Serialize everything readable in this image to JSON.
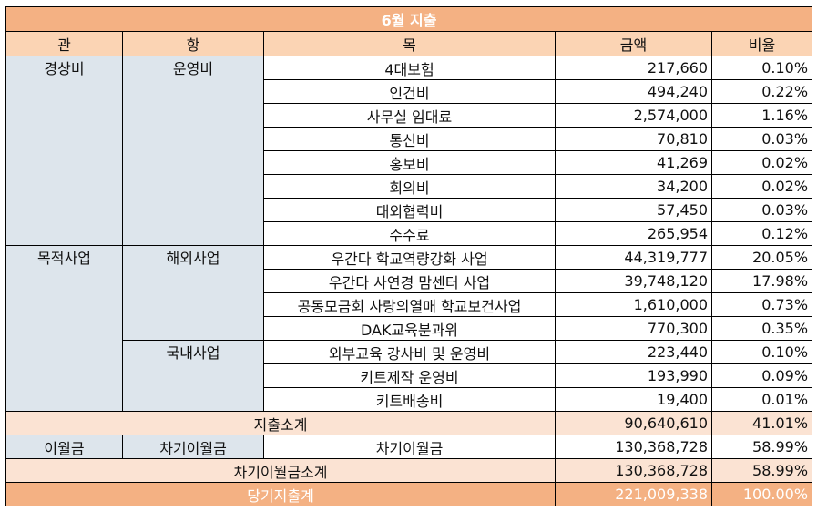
{
  "title": "6월 지출",
  "headers": {
    "gwan": "관",
    "hang": "항",
    "mok": "목",
    "amount": "금액",
    "ratio": "비율"
  },
  "groups": {
    "gyeongsang": {
      "gwan": "경상비",
      "hang": "운영비",
      "rows": [
        {
          "mok": "4대보험",
          "amount": "217,660",
          "ratio": "0.10%"
        },
        {
          "mok": "인건비",
          "amount": "494,240",
          "ratio": "0.22%"
        },
        {
          "mok": "사무실 임대료",
          "amount": "2,574,000",
          "ratio": "1.16%"
        },
        {
          "mok": "통신비",
          "amount": "70,810",
          "ratio": "0.03%"
        },
        {
          "mok": "홍보비",
          "amount": "41,269",
          "ratio": "0.02%"
        },
        {
          "mok": "회의비",
          "amount": "34,200",
          "ratio": "0.02%"
        },
        {
          "mok": "대외협력비",
          "amount": "57,450",
          "ratio": "0.03%"
        },
        {
          "mok": "수수료",
          "amount": "265,954",
          "ratio": "0.12%"
        }
      ]
    },
    "mokjeok": {
      "gwan": "목적사업",
      "overseas": {
        "hang": "해외사업",
        "rows": [
          {
            "mok": "우간다 학교역량강화 사업",
            "amount": "44,319,777",
            "ratio": "20.05%"
          },
          {
            "mok": "우간다 사연경 맘센터 사업",
            "amount": "39,748,120",
            "ratio": "17.98%"
          },
          {
            "mok": "공동모금회 사랑의열매 학교보건사업",
            "amount": "1,610,000",
            "ratio": "0.73%"
          },
          {
            "mok": "DAK교육분과위",
            "amount": "770,300",
            "ratio": "0.35%"
          }
        ]
      },
      "domestic": {
        "hang": "국내사업",
        "rows": [
          {
            "mok": "외부교육 강사비 및 운영비",
            "amount": "223,440",
            "ratio": "0.10%"
          },
          {
            "mok": "키트제작 운영비",
            "amount": "193,990",
            "ratio": "0.09%"
          },
          {
            "mok": "키트배송비",
            "amount": "19,400",
            "ratio": "0.01%"
          }
        ]
      }
    }
  },
  "subtotal": {
    "label": "지출소계",
    "amount": "90,640,610",
    "ratio": "41.01%"
  },
  "carry": {
    "gwan": "이월금",
    "hang": "차기이월금",
    "mok": "차기이월금",
    "amount": "130,368,728",
    "ratio": "58.99%"
  },
  "carry_subtotal": {
    "label": "차기이월금소계",
    "amount": "130,368,728",
    "ratio": "58.99%"
  },
  "total": {
    "label": "당기지출계",
    "amount": "221,009,338",
    "ratio": "100.00%"
  }
}
